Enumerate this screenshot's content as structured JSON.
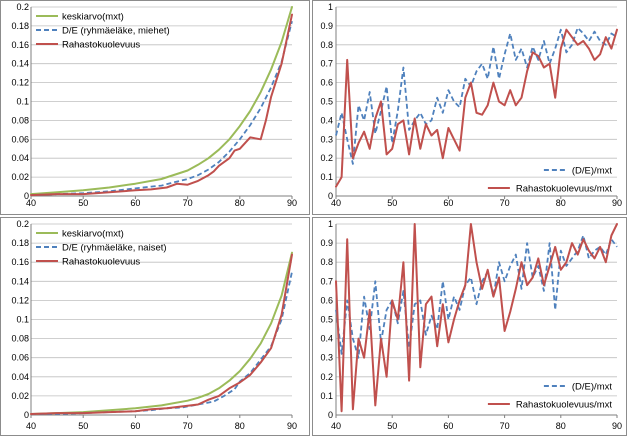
{
  "colors": {
    "green": "#9bbb59",
    "blue_dashed": "#4f81bd",
    "red": "#c0504d",
    "grid": "#bfbfbf",
    "panel_border": "#8c8c8c"
  },
  "chart_data": [
    {
      "type": "line",
      "panel": "top-left",
      "xlim": [
        40,
        90
      ],
      "ylim": [
        0,
        0.2
      ],
      "xticks": [
        "40",
        "50",
        "60",
        "70",
        "80",
        "90"
      ],
      "yticks": [
        "0",
        "0.02",
        "0.04",
        "0.06",
        "0.08",
        "0.1",
        "0.12",
        "0.14",
        "0.16",
        "0.18",
        "0.2"
      ],
      "grid": "horizontal",
      "legend_position": "top-left",
      "series": [
        {
          "name": "keskiarvo(mxt)",
          "color": "#9bbb59",
          "style": "solid",
          "x": [
            40,
            45,
            50,
            55,
            60,
            65,
            70,
            72,
            74,
            76,
            78,
            80,
            82,
            84,
            86,
            88,
            90
          ],
          "y": [
            0.002,
            0.004,
            0.006,
            0.009,
            0.013,
            0.018,
            0.027,
            0.033,
            0.04,
            0.049,
            0.06,
            0.074,
            0.09,
            0.11,
            0.134,
            0.163,
            0.2
          ]
        },
        {
          "name": "D/E (ryhmäeläke, miehet)",
          "color": "#4f81bd",
          "style": "dashed",
          "x": [
            40,
            45,
            50,
            55,
            60,
            63,
            65,
            67,
            70,
            72,
            74,
            76,
            78,
            80,
            82,
            84,
            86,
            88,
            90
          ],
          "y": [
            0.001,
            0.002,
            0.003,
            0.005,
            0.008,
            0.01,
            0.011,
            0.014,
            0.018,
            0.022,
            0.028,
            0.036,
            0.047,
            0.06,
            0.075,
            0.093,
            0.115,
            0.142,
            0.185
          ]
        },
        {
          "name": "Rahastokuolevuus",
          "color": "#c0504d",
          "style": "solid",
          "x": [
            40,
            45,
            50,
            55,
            60,
            63,
            66,
            68,
            70,
            72,
            74,
            75,
            76,
            78,
            79,
            80,
            82,
            84,
            85,
            86,
            88,
            90
          ],
          "y": [
            0.001,
            0.002,
            0.002,
            0.004,
            0.006,
            0.007,
            0.009,
            0.013,
            0.012,
            0.016,
            0.022,
            0.026,
            0.032,
            0.04,
            0.048,
            0.05,
            0.062,
            0.06,
            0.08,
            0.105,
            0.14,
            0.192
          ]
        }
      ]
    },
    {
      "type": "line",
      "panel": "top-right",
      "xlim": [
        40,
        90
      ],
      "ylim": [
        0,
        1
      ],
      "xticks": [
        "40",
        "50",
        "60",
        "70",
        "80",
        "90"
      ],
      "yticks": [
        "0",
        "0.1",
        "0.2",
        "0.3",
        "0.4",
        "0.5",
        "0.6",
        "0.7",
        "0.8",
        "0.9",
        "1"
      ],
      "grid": "horizontal",
      "legend_position": "bottom-right",
      "series": [
        {
          "name": "(D/E)/mxt",
          "color": "#4f81bd",
          "style": "dashed",
          "x": [
            40,
            41,
            42,
            43,
            44,
            45,
            46,
            47,
            48,
            49,
            50,
            51,
            52,
            53,
            54,
            55,
            56,
            57,
            58,
            59,
            60,
            61,
            62,
            63,
            64,
            65,
            66,
            67,
            68,
            69,
            70,
            71,
            72,
            73,
            74,
            75,
            76,
            77,
            78,
            79,
            80,
            81,
            82,
            83,
            84,
            85,
            86,
            87,
            88,
            89,
            90
          ],
          "y": [
            0.32,
            0.44,
            0.3,
            0.17,
            0.48,
            0.4,
            0.55,
            0.33,
            0.45,
            0.58,
            0.28,
            0.45,
            0.68,
            0.35,
            0.4,
            0.44,
            0.38,
            0.4,
            0.52,
            0.44,
            0.56,
            0.5,
            0.47,
            0.62,
            0.58,
            0.66,
            0.7,
            0.62,
            0.79,
            0.62,
            0.75,
            0.86,
            0.72,
            0.78,
            0.68,
            0.79,
            0.72,
            0.82,
            0.7,
            0.78,
            0.88,
            0.76,
            0.8,
            0.89,
            0.86,
            0.82,
            0.87,
            0.82,
            0.8,
            0.86,
            0.84
          ]
        },
        {
          "name": "Rahastokuolevuus/mxt",
          "color": "#c0504d",
          "style": "solid",
          "x": [
            40,
            41,
            42,
            43,
            44,
            45,
            46,
            47,
            48,
            49,
            50,
            51,
            52,
            53,
            54,
            55,
            56,
            57,
            58,
            59,
            60,
            61,
            62,
            63,
            64,
            65,
            66,
            67,
            68,
            69,
            70,
            71,
            72,
            73,
            74,
            75,
            76,
            77,
            78,
            79,
            80,
            81,
            82,
            83,
            84,
            85,
            86,
            87,
            88,
            89,
            90
          ],
          "y": [
            0.05,
            0.1,
            0.72,
            0.2,
            0.28,
            0.34,
            0.25,
            0.41,
            0.5,
            0.22,
            0.25,
            0.38,
            0.4,
            0.22,
            0.41,
            0.25,
            0.38,
            0.32,
            0.35,
            0.2,
            0.36,
            0.3,
            0.24,
            0.52,
            0.6,
            0.44,
            0.43,
            0.48,
            0.6,
            0.5,
            0.48,
            0.56,
            0.48,
            0.52,
            0.66,
            0.76,
            0.74,
            0.68,
            0.7,
            0.52,
            0.78,
            0.88,
            0.84,
            0.8,
            0.82,
            0.78,
            0.72,
            0.75,
            0.84,
            0.78,
            0.88
          ]
        }
      ]
    },
    {
      "type": "line",
      "panel": "bottom-left",
      "xlim": [
        40,
        90
      ],
      "ylim": [
        0,
        0.2
      ],
      "xticks": [
        "40",
        "50",
        "60",
        "70",
        "80",
        "90"
      ],
      "yticks": [
        "0",
        "0.02",
        "0.04",
        "0.06",
        "0.08",
        "0.1",
        "0.12",
        "0.14",
        "0.16",
        "0.18",
        "0.2"
      ],
      "grid": "horizontal",
      "legend_position": "top-left",
      "series": [
        {
          "name": "keskiarvo(mxt)",
          "color": "#9bbb59",
          "style": "solid",
          "x": [
            40,
            45,
            50,
            55,
            60,
            65,
            70,
            72,
            74,
            76,
            78,
            80,
            82,
            84,
            86,
            88,
            90
          ],
          "y": [
            0.001,
            0.002,
            0.003,
            0.005,
            0.007,
            0.01,
            0.015,
            0.018,
            0.022,
            0.028,
            0.036,
            0.046,
            0.059,
            0.075,
            0.096,
            0.125,
            0.17
          ]
        },
        {
          "name": "D/E (ryhmäeläke, naiset)",
          "color": "#4f81bd",
          "style": "dashed",
          "x": [
            40,
            45,
            50,
            55,
            60,
            63,
            66,
            69,
            72,
            75,
            77,
            79,
            80,
            82,
            84,
            86,
            88,
            90
          ],
          "y": [
            0.001,
            0.001,
            0.002,
            0.003,
            0.004,
            0.005,
            0.007,
            0.008,
            0.011,
            0.014,
            0.02,
            0.027,
            0.035,
            0.044,
            0.058,
            0.072,
            0.1,
            0.15
          ]
        },
        {
          "name": "Rahastokuolevuus",
          "color": "#c0504d",
          "style": "solid",
          "x": [
            40,
            45,
            50,
            55,
            60,
            63,
            66,
            69,
            72,
            74,
            76,
            78,
            80,
            82,
            84,
            86,
            88,
            90
          ],
          "y": [
            0.001,
            0.002,
            0.002,
            0.003,
            0.004,
            0.006,
            0.007,
            0.009,
            0.011,
            0.016,
            0.02,
            0.028,
            0.034,
            0.042,
            0.055,
            0.07,
            0.105,
            0.168
          ]
        }
      ]
    },
    {
      "type": "line",
      "panel": "bottom-right",
      "xlim": [
        40,
        90
      ],
      "ylim": [
        0,
        1
      ],
      "xticks": [
        "40",
        "50",
        "60",
        "70",
        "80",
        "90"
      ],
      "yticks": [
        "0",
        "0.1",
        "0.2",
        "0.3",
        "0.4",
        "0.5",
        "0.6",
        "0.7",
        "0.8",
        "0.9",
        "1"
      ],
      "grid": "horizontal",
      "legend_position": "bottom-right",
      "series": [
        {
          "name": "(D/E)/mxt",
          "color": "#4f81bd",
          "style": "dashed",
          "x": [
            40,
            41,
            42,
            43,
            44,
            45,
            46,
            47,
            48,
            49,
            50,
            51,
            52,
            53,
            54,
            55,
            56,
            57,
            58,
            59,
            60,
            61,
            62,
            63,
            64,
            65,
            66,
            67,
            68,
            69,
            70,
            71,
            72,
            73,
            74,
            75,
            76,
            77,
            78,
            79,
            80,
            81,
            82,
            83,
            84,
            85,
            86,
            87,
            88,
            89,
            90
          ],
          "y": [
            0.55,
            0.32,
            0.6,
            0.4,
            0.3,
            0.62,
            0.45,
            0.7,
            0.38,
            0.55,
            0.6,
            0.48,
            0.65,
            0.35,
            0.58,
            0.6,
            0.42,
            0.52,
            0.45,
            0.7,
            0.5,
            0.62,
            0.55,
            0.68,
            0.72,
            0.58,
            0.7,
            0.75,
            0.62,
            0.8,
            0.7,
            0.78,
            0.84,
            0.66,
            0.9,
            0.72,
            0.78,
            0.65,
            0.9,
            0.55,
            0.86,
            0.78,
            0.82,
            0.86,
            0.94,
            0.82,
            0.86,
            0.88,
            0.84,
            0.92,
            0.88
          ]
        },
        {
          "name": "Rahastokuolevuus/mxt",
          "color": "#c0504d",
          "style": "solid",
          "x": [
            40,
            41,
            42,
            43,
            44,
            45,
            46,
            47,
            48,
            49,
            50,
            51,
            52,
            53,
            54,
            55,
            56,
            57,
            58,
            59,
            60,
            61,
            62,
            63,
            64,
            65,
            66,
            67,
            68,
            69,
            70,
            71,
            72,
            73,
            74,
            75,
            76,
            77,
            78,
            79,
            80,
            81,
            82,
            83,
            84,
            85,
            86,
            87,
            88,
            89,
            90
          ],
          "y": [
            0.7,
            0.02,
            0.92,
            0.03,
            0.4,
            0.3,
            0.55,
            0.05,
            0.4,
            0.2,
            0.6,
            0.5,
            0.8,
            0.18,
            1.0,
            0.25,
            0.58,
            0.62,
            0.36,
            0.58,
            0.38,
            0.5,
            0.6,
            0.68,
            1.0,
            0.8,
            0.66,
            0.76,
            0.62,
            0.72,
            0.44,
            0.54,
            0.66,
            0.8,
            0.68,
            0.72,
            0.82,
            0.68,
            0.78,
            0.88,
            0.76,
            0.8,
            0.9,
            0.84,
            0.92,
            0.86,
            0.82,
            0.88,
            0.8,
            0.94,
            1.0
          ]
        }
      ]
    }
  ]
}
